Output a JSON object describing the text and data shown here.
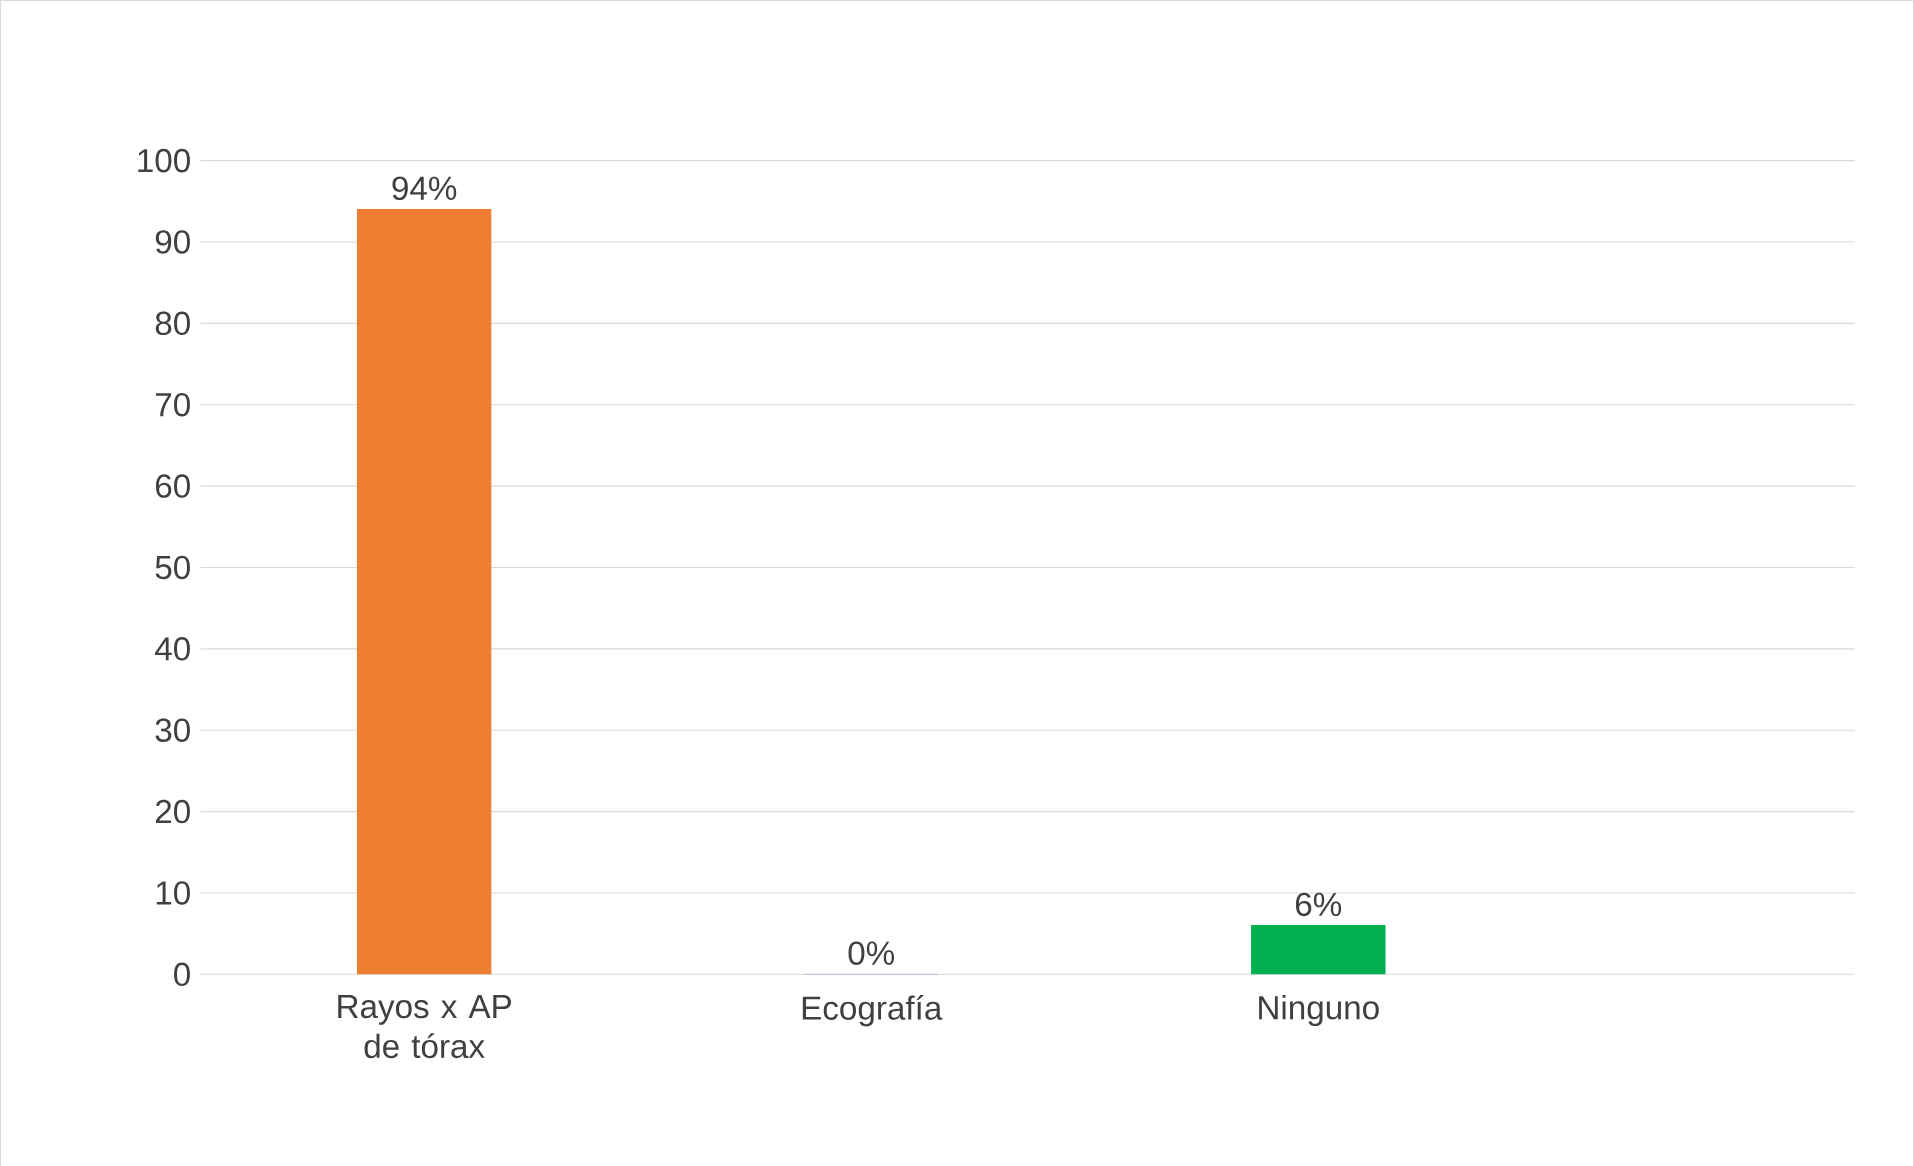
{
  "chart_data": {
    "type": "bar",
    "categories": [
      "Rayos x AP de tórax",
      "Ecografía",
      "Ninguno"
    ],
    "values": [
      94,
      0,
      6
    ],
    "colors": [
      "#ed7d31",
      "#1f5fa0",
      "#00b050"
    ],
    "value_labels": [
      "94%",
      "0%",
      "6%"
    ],
    "ylim": [
      0,
      100
    ],
    "yticks": [
      0,
      10,
      20,
      30,
      40,
      50,
      60,
      70,
      80,
      90,
      100
    ],
    "grid": "y"
  }
}
